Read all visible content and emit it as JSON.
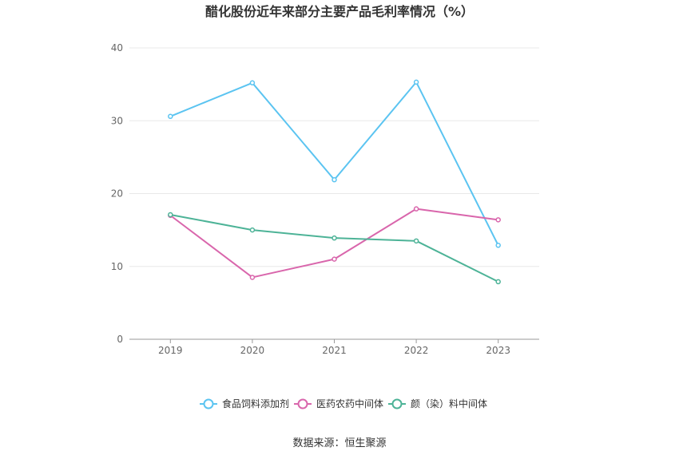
{
  "chart_data": {
    "type": "line",
    "title": "醋化股份近年来部分主要产品毛利率情况（%）",
    "xlabel": "",
    "ylabel": "",
    "categories": [
      "2019",
      "2020",
      "2021",
      "2022",
      "2023"
    ],
    "ylim": [
      0,
      40
    ],
    "yticks": [
      0,
      10,
      20,
      30,
      40
    ],
    "grid": true,
    "legend_position": "bottom",
    "series": [
      {
        "name": "食品饲料添加剂",
        "color": "#5bc4f1",
        "values": [
          30.6,
          35.2,
          21.9,
          35.3,
          12.9
        ]
      },
      {
        "name": "医药农药中间体",
        "color": "#d966ac",
        "values": [
          17.0,
          8.5,
          11.0,
          17.9,
          16.4
        ]
      },
      {
        "name": "颜（染）料中间体",
        "color": "#4db397",
        "values": [
          17.1,
          15.0,
          13.9,
          13.5,
          7.9
        ]
      }
    ],
    "source": "数据来源：恒生聚源"
  }
}
